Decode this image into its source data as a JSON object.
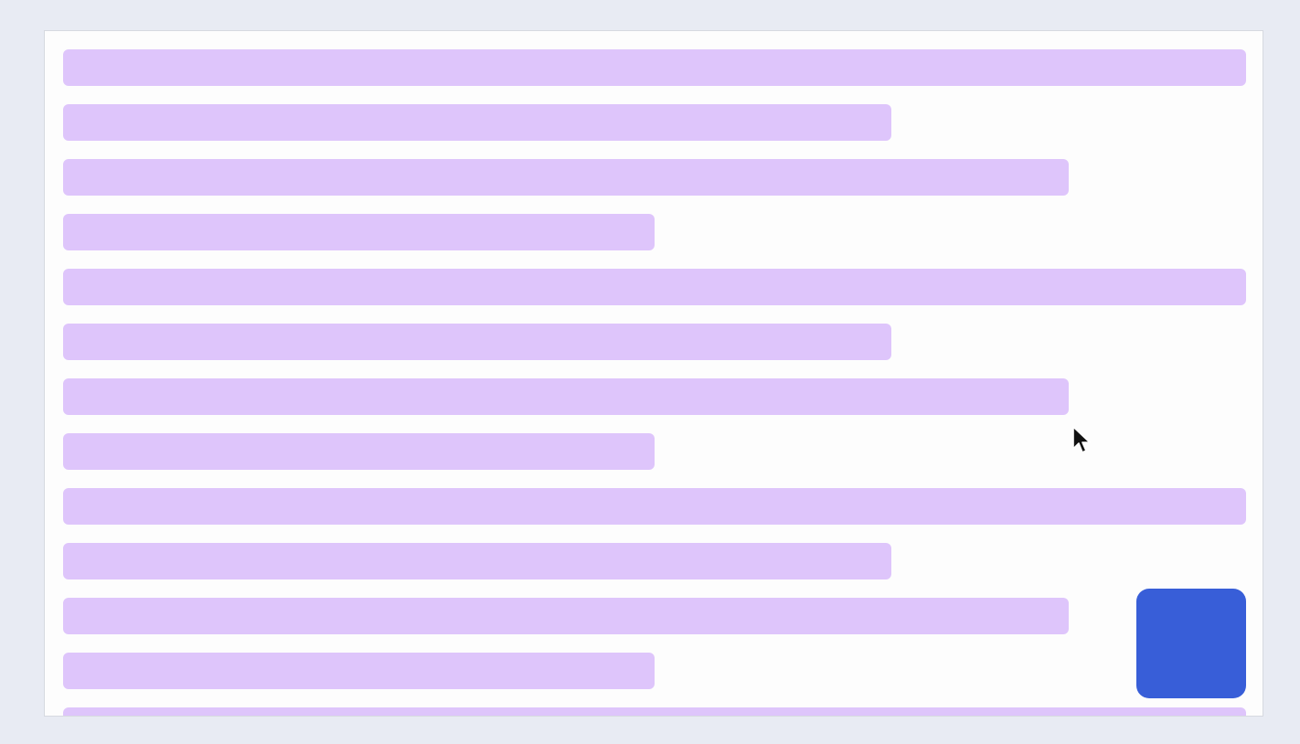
{
  "theme": {
    "page_background": "#e8ebf3",
    "panel_background": "#fdfdfd",
    "placeholder_bar_color": "#dec5fb",
    "action_button_color": "#385ed8"
  },
  "placeholder_rows": [
    {
      "id": "row-1"
    },
    {
      "id": "row-2"
    },
    {
      "id": "row-3"
    },
    {
      "id": "row-4"
    },
    {
      "id": "row-5"
    },
    {
      "id": "row-6"
    },
    {
      "id": "row-7"
    },
    {
      "id": "row-8"
    },
    {
      "id": "row-9"
    },
    {
      "id": "row-10"
    },
    {
      "id": "row-11"
    },
    {
      "id": "row-12"
    },
    {
      "id": "row-13"
    }
  ],
  "icons": {
    "cursor": "mouse-pointer-icon"
  }
}
